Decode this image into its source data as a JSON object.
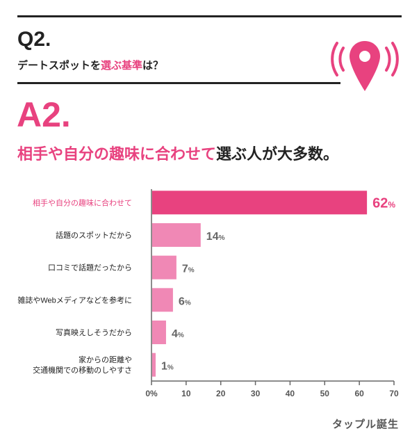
{
  "question": {
    "number": "Q2.",
    "text_before": "デートスポットを",
    "text_highlight": "選ぶ基準",
    "text_after": "は？"
  },
  "answer": {
    "number": "A2.",
    "text_highlight": "相手や自分の趣味に合わせて",
    "text_after": "選ぶ人が大多数。"
  },
  "icon": "location-pin-icon",
  "logo": "タップル誕生",
  "colors": {
    "accent": "#e8427f",
    "bar_top": "#e8427f",
    "bar_other": "#f088b5",
    "value_top": "#e8427f",
    "value_other": "#666666",
    "axis": "#666666"
  },
  "chart_data": {
    "type": "bar",
    "orientation": "horizontal",
    "categories": [
      [
        "相手や自分の趣味に合わせて"
      ],
      [
        "話題のスポットだから"
      ],
      [
        "口コミで話題だったから"
      ],
      [
        "雑誌やWebメディアなどを参考に"
      ],
      [
        "写真映えしそうだから"
      ],
      [
        "家からの距離や",
        "交通機関での移動のしやすさ"
      ]
    ],
    "values": [
      62,
      14,
      7,
      6,
      4,
      1
    ],
    "value_unit": "%",
    "xlim": [
      0,
      70
    ],
    "xticks": [
      "0%",
      "10",
      "20",
      "30",
      "40",
      "50",
      "60",
      "70"
    ],
    "title": "",
    "xlabel": "",
    "ylabel": ""
  }
}
